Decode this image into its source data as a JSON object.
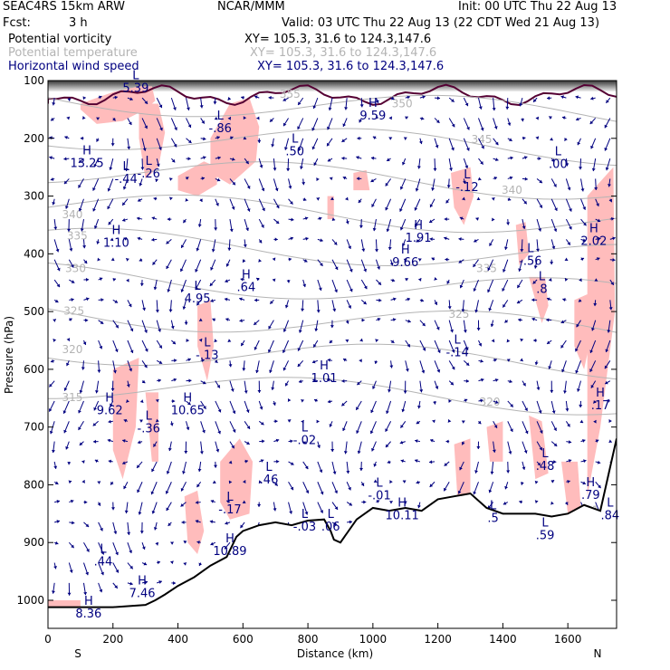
{
  "header": {
    "model": "SEAC4RS 15km ARW",
    "org": "NCAR/MMM",
    "init": "Init: 00 UTC Thu 22 Aug 13",
    "fcst_label": "Fcst:",
    "fcst_value": "3 h",
    "valid": "Valid: 03 UTC Thu 22 Aug 13 (22 CDT Wed 21 Aug 13)"
  },
  "legend": [
    {
      "label": "Potential vorticity",
      "xy": "XY= 105.3, 31.6 to 124.3,147.6",
      "color": "#000000"
    },
    {
      "label": "Potential temperature",
      "xy": "XY= 105.3, 31.6 to 124.3,147.6",
      "color": "#b4b4b4"
    },
    {
      "label": "Horizontal wind speed",
      "xy": "XY= 105.3, 31.6 to 124.3,147.6",
      "color": "#000080"
    }
  ],
  "chart_data": {
    "type": "cross-section",
    "xlabel": "Distance (km)",
    "ylabel": "Pressure (hPa)",
    "xlim": [
      0,
      1750
    ],
    "ylim": [
      1050,
      100
    ],
    "x_ticks": [
      0,
      200,
      400,
      600,
      800,
      1000,
      1200,
      1400,
      1600
    ],
    "y_ticks": [
      100,
      200,
      300,
      400,
      500,
      600,
      700,
      800,
      900,
      1000
    ],
    "end_labels": {
      "left": "S",
      "right": "N"
    },
    "colors": {
      "pv_fill": "#ffbcbc",
      "theta": "#b4b4b4",
      "wind": "#000080",
      "terrain": "#000000",
      "pv_contour": "#550033"
    },
    "terrain": {
      "x": [
        0,
        100,
        200,
        300,
        330,
        360,
        400,
        450,
        500,
        550,
        580,
        600,
        650,
        700,
        750,
        800,
        850,
        870,
        880,
        900,
        950,
        1000,
        1050,
        1100,
        1150,
        1200,
        1250,
        1300,
        1350,
        1400,
        1450,
        1500,
        1550,
        1600,
        1650,
        1700,
        1750
      ],
      "p": [
        1012,
        1012,
        1012,
        1008,
        1000,
        990,
        975,
        960,
        940,
        925,
        890,
        880,
        870,
        865,
        870,
        862,
        860,
        880,
        895,
        900,
        860,
        840,
        845,
        840,
        845,
        825,
        820,
        815,
        840,
        850,
        850,
        850,
        855,
        850,
        835,
        845,
        720
      ]
    },
    "theta_contours": [
      {
        "label": "355",
        "x": 745,
        "p": 130
      },
      {
        "label": "350",
        "x": 1090,
        "p": 146
      },
      {
        "label": "345",
        "x": 1335,
        "p": 208
      },
      {
        "label": "340",
        "x": 75,
        "p": 338
      },
      {
        "label": "340",
        "x": 1428,
        "p": 296
      },
      {
        "label": "335",
        "x": 90,
        "p": 375
      },
      {
        "label": "335",
        "x": 1350,
        "p": 432
      },
      {
        "label": "330",
        "x": 85,
        "p": 432
      },
      {
        "label": "325",
        "x": 80,
        "p": 505
      },
      {
        "label": "325",
        "x": 1265,
        "p": 511
      },
      {
        "label": "320",
        "x": 75,
        "p": 572
      },
      {
        "label": "320",
        "x": 1360,
        "p": 663
      },
      {
        "label": "315",
        "x": 75,
        "p": 655
      },
      {
        "label": "315",
        "x": 1685,
        "p": 850
      }
    ],
    "extrema": [
      {
        "type": "L",
        "value": "5.39",
        "x": 270,
        "p": 110
      },
      {
        "type": "L",
        "value": "-.86",
        "x": 530,
        "p": 180
      },
      {
        "type": "H",
        "value": "9.59",
        "x": 1000,
        "p": 158
      },
      {
        "type": "L",
        "value": ".50",
        "x": 760,
        "p": 220
      },
      {
        "type": "H",
        "value": "13.25",
        "x": 120,
        "p": 240
      },
      {
        "type": "L",
        "value": "-.44",
        "x": 240,
        "p": 268
      },
      {
        "type": "L",
        "value": "-.26",
        "x": 310,
        "p": 258
      },
      {
        "type": "L",
        "value": ".00",
        "x": 1570,
        "p": 242
      },
      {
        "type": "L",
        "value": "-.12",
        "x": 1290,
        "p": 282
      },
      {
        "type": "H",
        "value": "1.10",
        "x": 210,
        "p": 378
      },
      {
        "type": "H",
        "value": "1.91",
        "x": 1140,
        "p": 370
      },
      {
        "type": "H",
        "value": "9.66",
        "x": 1100,
        "p": 412
      },
      {
        "type": "H",
        "value": "2.02",
        "x": 1680,
        "p": 375
      },
      {
        "type": "L",
        "value": "-.56",
        "x": 1485,
        "p": 410
      },
      {
        "type": "L",
        "value": ".8",
        "x": 1520,
        "p": 458
      },
      {
        "type": "L",
        "value": "4.95",
        "x": 460,
        "p": 475
      },
      {
        "type": "H",
        "value": ".64",
        "x": 610,
        "p": 455
      },
      {
        "type": "L",
        "value": "-.13",
        "x": 490,
        "p": 573
      },
      {
        "type": "L",
        "value": "-.14",
        "x": 1260,
        "p": 568
      },
      {
        "type": "H",
        "value": "1.01",
        "x": 850,
        "p": 613
      },
      {
        "type": "H",
        "value": "9.62",
        "x": 190,
        "p": 668
      },
      {
        "type": "H",
        "value": "10.65",
        "x": 430,
        "p": 668
      },
      {
        "type": "L",
        "value": "-.36",
        "x": 310,
        "p": 700
      },
      {
        "type": "H",
        "value": ".17",
        "x": 1700,
        "p": 660
      },
      {
        "type": "L",
        "value": "-.02",
        "x": 790,
        "p": 720
      },
      {
        "type": "L",
        "value": ".46",
        "x": 680,
        "p": 788
      },
      {
        "type": "L",
        "value": ".48",
        "x": 1530,
        "p": 765
      },
      {
        "type": "L",
        "value": "-.01",
        "x": 1020,
        "p": 816
      },
      {
        "type": "L",
        "value": "-.17",
        "x": 560,
        "p": 840
      },
      {
        "type": "H",
        "value": ".79",
        "x": 1670,
        "p": 815
      },
      {
        "type": "H",
        "value": "10.11",
        "x": 1090,
        "p": 850
      },
      {
        "type": "L",
        "value": "-.03",
        "x": 790,
        "p": 870
      },
      {
        "type": "L",
        "value": ".06",
        "x": 870,
        "p": 870
      },
      {
        "type": "L",
        "value": ".5",
        "x": 1370,
        "p": 855
      },
      {
        "type": "L",
        "value": ".84",
        "x": 1730,
        "p": 850
      },
      {
        "type": "L",
        "value": ".59",
        "x": 1530,
        "p": 885
      },
      {
        "type": "H",
        "value": "10.89",
        "x": 560,
        "p": 912
      },
      {
        "type": "L",
        "value": ".44",
        "x": 170,
        "p": 930
      },
      {
        "type": "H",
        "value": "7.46",
        "x": 290,
        "p": 985
      },
      {
        "type": "H",
        "value": "8.36",
        "x": 125,
        "p": 1020
      }
    ],
    "pv_regions": [
      {
        "x": [
          100,
          200,
          280,
          320,
          330,
          300,
          230,
          150,
          100
        ],
        "p": [
          140,
          120,
          110,
          110,
          135,
          150,
          170,
          175,
          150
        ]
      },
      {
        "x": [
          280,
          340,
          360,
          340,
          300,
          280
        ],
        "p": [
          140,
          140,
          190,
          250,
          270,
          200
        ]
      },
      {
        "x": [
          400,
          480,
          520,
          520,
          460,
          400
        ],
        "p": [
          265,
          240,
          250,
          280,
          300,
          290
        ]
      },
      {
        "x": [
          500,
          560,
          620,
          650,
          640,
          560,
          500
        ],
        "p": [
          200,
          140,
          130,
          180,
          240,
          280,
          260
        ]
      },
      {
        "x": [
          860,
          880,
          880,
          860
        ],
        "p": [
          300,
          300,
          340,
          340
        ]
      },
      {
        "x": [
          940,
          980,
          990,
          940
        ],
        "p": [
          260,
          255,
          290,
          290
        ]
      },
      {
        "x": [
          1240,
          1300,
          1310,
          1280,
          1250
        ],
        "p": [
          260,
          250,
          300,
          350,
          320
        ]
      },
      {
        "x": [
          1480,
          1530,
          1540,
          1520
        ],
        "p": [
          440,
          440,
          490,
          520
        ]
      },
      {
        "x": [
          1440,
          1470,
          1480,
          1450
        ],
        "p": [
          350,
          345,
          400,
          420
        ]
      },
      {
        "x": [
          1620,
          1660,
          1680,
          1650,
          1620
        ],
        "p": [
          480,
          470,
          520,
          600,
          560
        ]
      },
      {
        "x": [
          460,
          500,
          510,
          490,
          460
        ],
        "p": [
          490,
          480,
          560,
          620,
          560
        ]
      },
      {
        "x": [
          200,
          280,
          270,
          230,
          200
        ],
        "p": [
          600,
          580,
          700,
          790,
          740
        ]
      },
      {
        "x": [
          300,
          340,
          340,
          320
        ],
        "p": [
          640,
          640,
          760,
          760
        ]
      },
      {
        "x": [
          530,
          590,
          630,
          620,
          560,
          530
        ],
        "p": [
          760,
          720,
          760,
          850,
          860,
          830
        ]
      },
      {
        "x": [
          420,
          460,
          480,
          460,
          430
        ],
        "p": [
          820,
          810,
          880,
          920,
          900
        ]
      },
      {
        "x": [
          1250,
          1300,
          1300,
          1260
        ],
        "p": [
          730,
          720,
          820,
          820
        ]
      },
      {
        "x": [
          1350,
          1400,
          1400,
          1360
        ],
        "p": [
          700,
          690,
          760,
          760
        ]
      },
      {
        "x": [
          1480,
          1520,
          1540,
          1500
        ],
        "p": [
          680,
          690,
          780,
          790
        ]
      },
      {
        "x": [
          1580,
          1630,
          1640,
          1600
        ],
        "p": [
          760,
          760,
          840,
          850
        ]
      },
      {
        "x": [
          1660,
          1740,
          1745,
          1700,
          1660
        ],
        "p": [
          300,
          250,
          500,
          700,
          820
        ]
      },
      {
        "x": [
          0,
          100,
          100,
          0
        ],
        "p": [
          1000,
          1000,
          1012,
          1012
        ]
      }
    ]
  }
}
